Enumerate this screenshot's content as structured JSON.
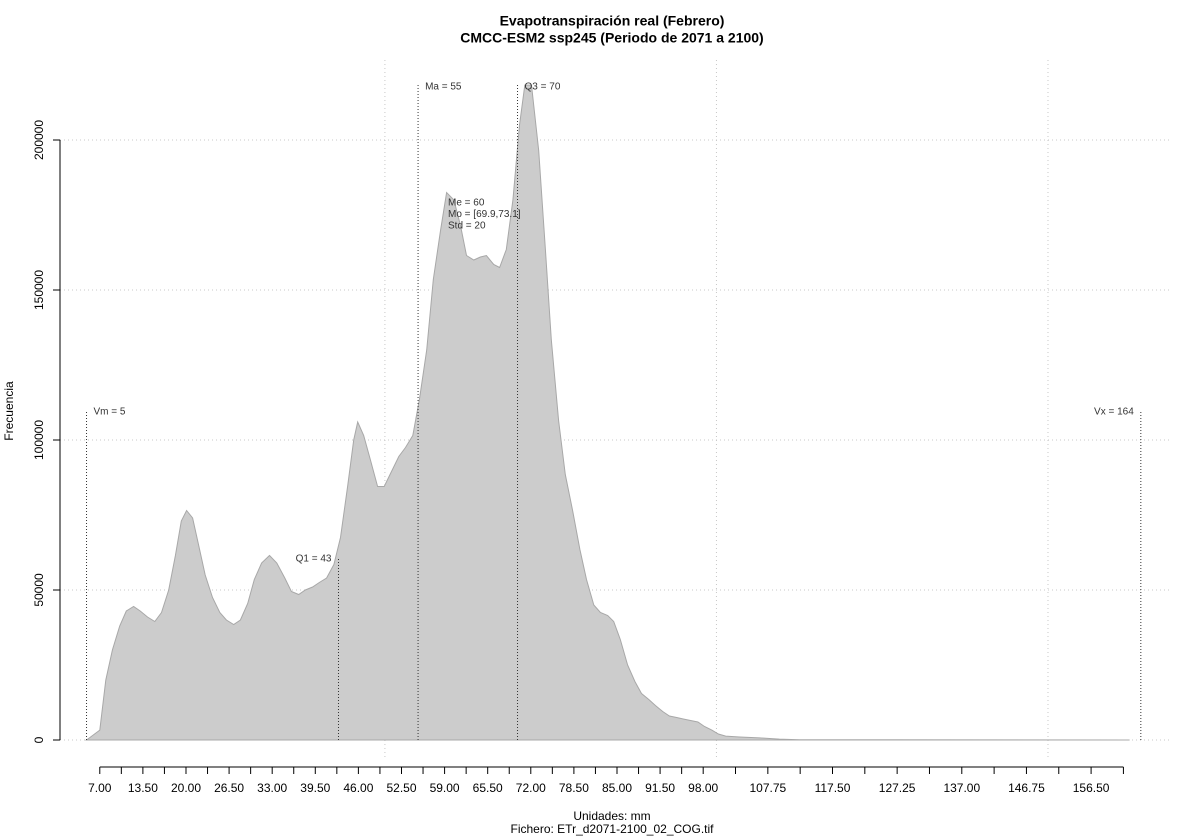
{
  "chart_data": {
    "type": "area",
    "title": "Evapotranspiración real (Febrero)",
    "subtitle": "CMCC-ESM2 ssp245 (Periodo de 2071 a 2100)",
    "x_label": "Unidades: mm",
    "file_label": "Fichero: ETr_d2071-2100_02_COG.tif",
    "y_label": "Frecuencia",
    "color": "#cccccc",
    "x": [
      5,
      7,
      7.9,
      8.9,
      10,
      11,
      12.1,
      13.1,
      14.2,
      15.3,
      16.3,
      17.4,
      18.4,
      19.3,
      20.1,
      21,
      21.9,
      22.9,
      24,
      25.1,
      26.1,
      27.2,
      28.2,
      29.3,
      30.3,
      31.4,
      32.6,
      33.7,
      34.9,
      35.9,
      37,
      38,
      39.1,
      40.1,
      41.2,
      42.3,
      43.3,
      44.4,
      45.3,
      45.9,
      46.8,
      47.8,
      48.9,
      49.9,
      51,
      52.1,
      53.1,
      54.2,
      55.2,
      56.3,
      57.3,
      58.4,
      59.3,
      60.4,
      61.4,
      62.3,
      63.4,
      64.4,
      65.3,
      66.4,
      67.3,
      68.3,
      69.3,
      70.3,
      71.1,
      72.1,
      73.2,
      74.2,
      75.1,
      76.2,
      77.2,
      78.3,
      79.4,
      80.4,
      81.5,
      82.5,
      83.6,
      84.5,
      85.5,
      86.6,
      87.7,
      88.7,
      89.8,
      90.8,
      91.9,
      92.9,
      94,
      95,
      96.1,
      97.2,
      98.2,
      99.3,
      100.3,
      101.4,
      103.5,
      106.5,
      109.5,
      112.5,
      162.3
    ],
    "values": [
      0,
      3300,
      20000,
      30000,
      38000,
      43000,
      44500,
      43000,
      41000,
      39500,
      42500,
      50000,
      61500,
      73000,
      76500,
      74000,
      65000,
      55000,
      47500,
      42500,
      40000,
      38500,
      40000,
      45500,
      53500,
      59000,
      61500,
      59000,
      54000,
      49500,
      48500,
      50000,
      51000,
      52500,
      54000,
      58500,
      67500,
      85000,
      100000,
      106000,
      101500,
      93500,
      84500,
      84500,
      89500,
      94500,
      97500,
      101500,
      113500,
      130000,
      153500,
      170000,
      182500,
      180000,
      171500,
      161500,
      160000,
      161000,
      161500,
      158500,
      157500,
      163500,
      180000,
      205000,
      218300,
      218300,
      196500,
      163500,
      133500,
      106500,
      88500,
      76500,
      63500,
      53500,
      45000,
      42500,
      41500,
      39500,
      33500,
      25000,
      19500,
      15500,
      13500,
      11500,
      9500,
      8000,
      7500,
      7000,
      6500,
      6000,
      4500,
      3300,
      2000,
      1300,
      1000,
      700,
      300,
      100,
      0
    ],
    "xlim": [
      1,
      168.4
    ],
    "ylim": [
      -6667,
      226667
    ],
    "yticks": [
      0,
      50000,
      100000,
      150000,
      200000
    ],
    "xticks": [
      {
        "value": 7,
        "label": "7.00"
      },
      {
        "value": 13.5,
        "label": "13.50"
      },
      {
        "value": 20,
        "label": "20.00"
      },
      {
        "value": 26.5,
        "label": "26.50"
      },
      {
        "value": 33,
        "label": "33.00"
      },
      {
        "value": 39.5,
        "label": "39.50"
      },
      {
        "value": 46,
        "label": "46.00"
      },
      {
        "value": 52.5,
        "label": "52.50"
      },
      {
        "value": 59,
        "label": "59.00"
      },
      {
        "value": 65.5,
        "label": "65.50"
      },
      {
        "value": 72,
        "label": "72.00"
      },
      {
        "value": 78.5,
        "label": "78.50"
      },
      {
        "value": 85,
        "label": "85.00"
      },
      {
        "value": 91.5,
        "label": "91.50"
      },
      {
        "value": 98,
        "label": "98.00"
      },
      {
        "value": 107.75,
        "label": "107.75"
      },
      {
        "value": 117.5,
        "label": "117.50"
      },
      {
        "value": 127.25,
        "label": "127.25"
      },
      {
        "value": 137,
        "label": "137.00"
      },
      {
        "value": 146.75,
        "label": "146.75"
      },
      {
        "value": 156.5,
        "label": "156.50"
      }
    ],
    "xminorticks": [
      10.25,
      16.75,
      23.25,
      29.75,
      36.25,
      42.75,
      49.25,
      55.75,
      62.25,
      68.75,
      75.25,
      81.75,
      88.25,
      94.75,
      102.875,
      112.625,
      122.375,
      132.125,
      141.875,
      151.625,
      161.375
    ],
    "xgrid": [
      50,
      100,
      150
    ],
    "grid": true,
    "markers": [
      {
        "label": "Vm = 5",
        "value": 5
      },
      {
        "label": "Q1 = 43",
        "value": 43
      },
      {
        "label": "Ma = 55",
        "value": 55
      },
      {
        "label": "Q3 = 70",
        "value": 70
      },
      {
        "label": "Vx = 164",
        "value": 164
      }
    ],
    "stats": [
      "Me = 60",
      "Mo = [69.9,73.1]",
      "Std = 20"
    ]
  }
}
